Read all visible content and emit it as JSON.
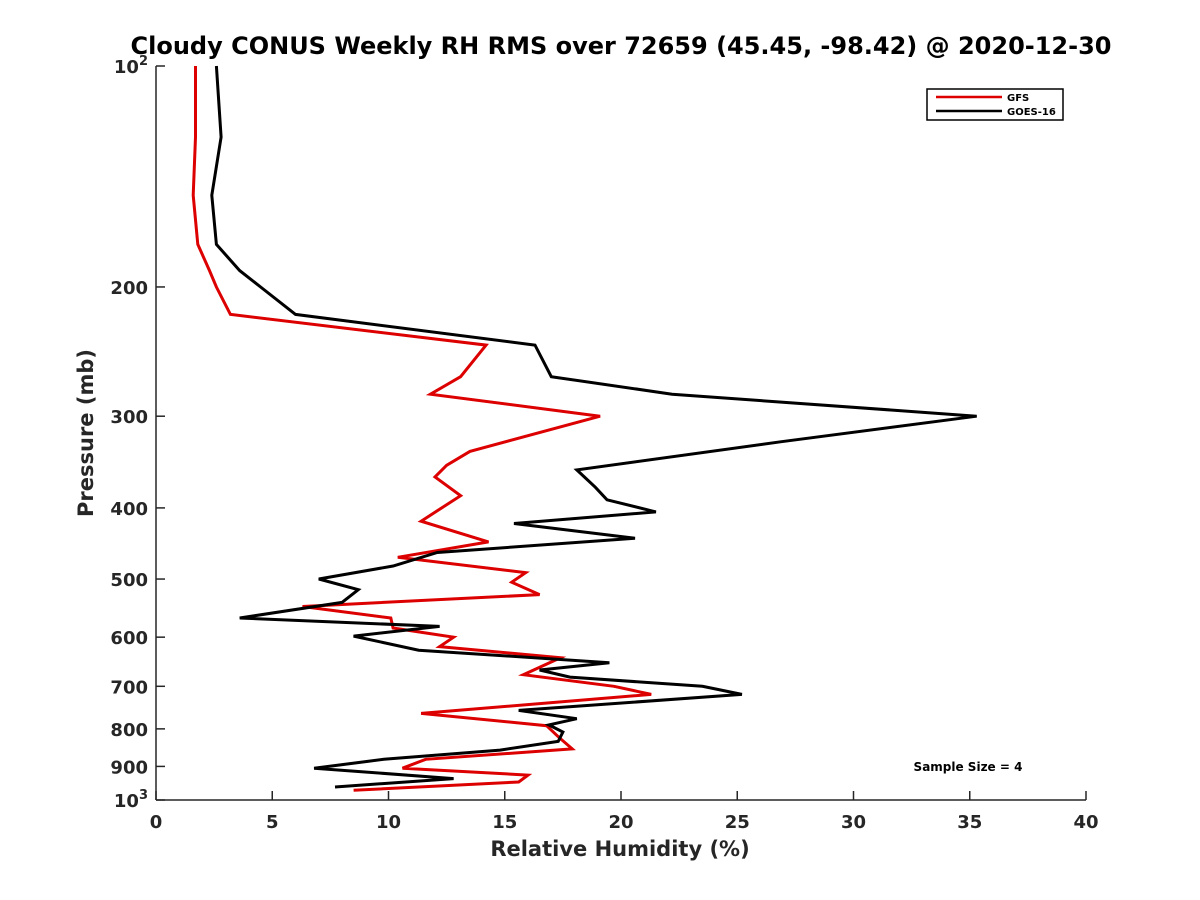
{
  "chart_data": {
    "type": "line",
    "title": "Cloudy CONUS Weekly RH RMS over 72659 (45.45, -98.42) @ 2020-12-30",
    "xlabel": "Relative Humidity (%)",
    "ylabel": "Pressure (mb)",
    "xlim": [
      0,
      40
    ],
    "ylim": [
      100,
      1000
    ],
    "y_scale": "log",
    "y_reversed": true,
    "grid": false,
    "legend_position": "top-right",
    "x_ticks": [
      "0",
      "5",
      "10",
      "15",
      "20",
      "25",
      "30",
      "35",
      "40"
    ],
    "y_ticks": [
      {
        "value": 100,
        "base": "10",
        "exp": "2"
      },
      {
        "value": 200,
        "label": "200"
      },
      {
        "value": 300,
        "label": "300"
      },
      {
        "value": 400,
        "label": "400"
      },
      {
        "value": 500,
        "label": "500"
      },
      {
        "value": 600,
        "label": "600"
      },
      {
        "value": 700,
        "label": "700"
      },
      {
        "value": 800,
        "label": "800"
      },
      {
        "value": 900,
        "label": "900"
      },
      {
        "value": 1000,
        "base": "10",
        "exp": "3"
      }
    ],
    "annotation": "Sample Size = 4",
    "series": [
      {
        "name": "GFS",
        "color": "#dd0000",
        "points": [
          [
            1.7,
            100
          ],
          [
            1.7,
            125
          ],
          [
            1.6,
            150
          ],
          [
            1.8,
            175
          ],
          [
            2.3,
            190
          ],
          [
            2.6,
            200
          ],
          [
            3.2,
            218
          ],
          [
            14.2,
            240
          ],
          [
            13.1,
            265
          ],
          [
            11.8,
            280
          ],
          [
            19.1,
            300
          ],
          [
            13.5,
            335
          ],
          [
            12.5,
            350
          ],
          [
            12.0,
            363
          ],
          [
            13.1,
            385
          ],
          [
            11.4,
            417
          ],
          [
            14.3,
            445
          ],
          [
            10.4,
            467
          ],
          [
            15.9,
            490
          ],
          [
            15.3,
            505
          ],
          [
            16.5,
            525
          ],
          [
            6.3,
            545
          ],
          [
            10.1,
            565
          ],
          [
            10.2,
            583
          ],
          [
            12.8,
            600
          ],
          [
            12.2,
            618
          ],
          [
            17.4,
            640
          ],
          [
            15.8,
            675
          ],
          [
            19.7,
            700
          ],
          [
            21.3,
            718
          ],
          [
            11.4,
            762
          ],
          [
            16.8,
            792
          ],
          [
            17.3,
            820
          ],
          [
            17.9,
            852
          ],
          [
            11.6,
            880
          ],
          [
            10.6,
            905
          ],
          [
            16.0,
            925
          ],
          [
            15.6,
            945
          ],
          [
            8.5,
            970
          ]
        ]
      },
      {
        "name": "GOES-16",
        "color": "#000000",
        "points": [
          [
            2.6,
            100
          ],
          [
            2.8,
            125
          ],
          [
            2.4,
            150
          ],
          [
            2.6,
            175
          ],
          [
            3.6,
            190
          ],
          [
            4.5,
            200
          ],
          [
            6.0,
            218
          ],
          [
            16.3,
            240
          ],
          [
            17.0,
            265
          ],
          [
            22.2,
            280
          ],
          [
            35.3,
            300
          ],
          [
            26.9,
            325
          ],
          [
            18.1,
            355
          ],
          [
            18.9,
            375
          ],
          [
            19.4,
            390
          ],
          [
            21.5,
            405
          ],
          [
            15.4,
            420
          ],
          [
            20.6,
            440
          ],
          [
            12.1,
            460
          ],
          [
            10.2,
            480
          ],
          [
            7.0,
            500
          ],
          [
            8.7,
            517
          ],
          [
            8.0,
            538
          ],
          [
            3.6,
            565
          ],
          [
            12.2,
            580
          ],
          [
            8.5,
            598
          ],
          [
            11.3,
            625
          ],
          [
            19.5,
            650
          ],
          [
            16.5,
            665
          ],
          [
            17.8,
            680
          ],
          [
            23.5,
            700
          ],
          [
            25.2,
            718
          ],
          [
            15.6,
            755
          ],
          [
            18.1,
            775
          ],
          [
            16.9,
            790
          ],
          [
            17.5,
            808
          ],
          [
            17.3,
            832
          ],
          [
            14.8,
            855
          ],
          [
            9.8,
            880
          ],
          [
            6.8,
            905
          ],
          [
            12.8,
            935
          ],
          [
            7.7,
            960
          ]
        ]
      }
    ]
  }
}
